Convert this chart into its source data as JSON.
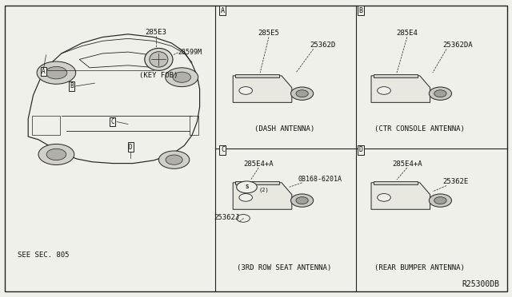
{
  "bg_color": "#f0f0eb",
  "border_color": "#000000",
  "title_ref": "R25300DB",
  "sections": {
    "A": {
      "label": "A",
      "title": "(DASH ANTENNA)",
      "parts": [
        "285E5",
        "25362D"
      ]
    },
    "B": {
      "label": "B",
      "title": "(CTR CONSOLE ANTENNA)",
      "parts": [
        "285E4",
        "25362DA"
      ]
    },
    "C": {
      "label": "C",
      "title": "(3RD ROW SEAT ANTENNA)",
      "parts": [
        "285E4+A",
        "0B168-6201A",
        "25362J"
      ]
    },
    "D": {
      "label": "D",
      "title": "(REAR BUMPER ANTENNA)",
      "parts": [
        "285E4+A",
        "25362E"
      ]
    }
  },
  "key_fob": {
    "part1": "285E3",
    "part2": "28599M",
    "label": "(KEY FOB)"
  },
  "see_sec": "SEE SEC. 805",
  "line_color": "#222222",
  "text_color": "#111111"
}
